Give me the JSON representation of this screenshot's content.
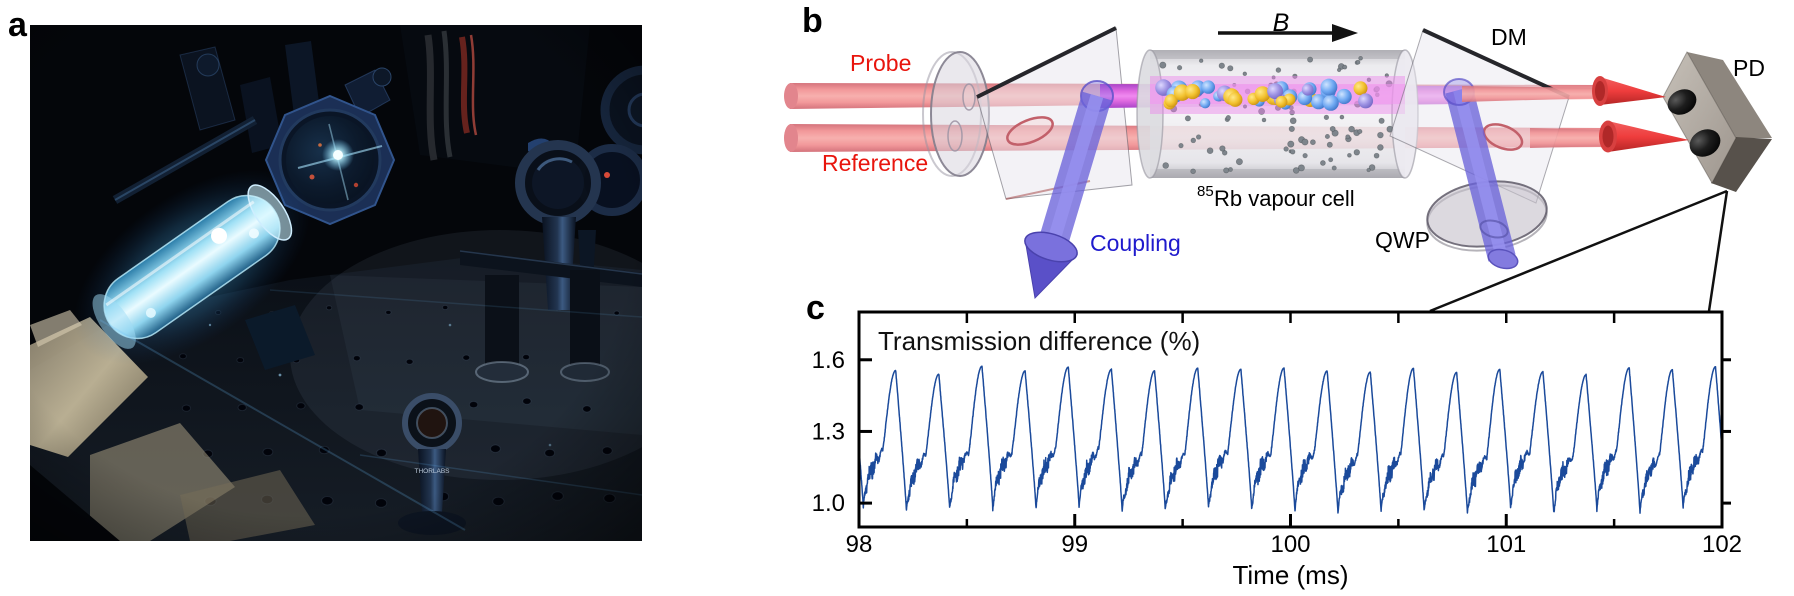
{
  "panels": {
    "a": "a",
    "b": "b",
    "c": "c"
  },
  "diagram": {
    "labels": {
      "probe": "Probe",
      "reference": "Reference",
      "coupling": "Coupling",
      "b_field": "B",
      "cell_sup": "85",
      "cell": "Rb vapour cell",
      "qwp": "QWP",
      "dm": "DM",
      "pd": "PD"
    },
    "colors": {
      "probe_label": "#e8150d",
      "coupling_label": "#1f1acd",
      "beam_red_core": "#f5b0ae",
      "beam_red_edge": "#d4737c",
      "beam_magenta_core": "#f08af0",
      "beam_magenta_edge": "#a844c8",
      "beam_blue": "#6a63da",
      "cone_red": "#e04343"
    },
    "atoms": {
      "grey_dots": 95,
      "beam_spheres": 38,
      "sphere_colors": [
        "#f4c832",
        "#6fa8f2",
        "#9b90e2"
      ],
      "sphere_weights": [
        0.45,
        0.35,
        0.2
      ],
      "seed": 7
    }
  },
  "photo": {
    "equipment_label": "THORLABS"
  },
  "chart_data": {
    "type": "line",
    "title": "Transmission difference (%)",
    "xlabel": "Time (ms)",
    "ylabel": "",
    "xlim": [
      98,
      102
    ],
    "ylim": [
      0.9,
      1.8
    ],
    "x_ticks": [
      98,
      99,
      100,
      101,
      102
    ],
    "x_minor_step": 0.5,
    "y_ticks": [
      1.0,
      1.3,
      1.6
    ],
    "grid": false,
    "legend": null,
    "line_color": "#1b4a9b",
    "frame_color": "#000000",
    "waveform": {
      "description": "Periodic ~5 kHz sawtooth-like relaxation oscillation of probe transmission: noisy slow plateau, steep rise to peak ~1.56%, steep fall to ~0.97%",
      "period_ms": 0.2,
      "first_peak_ms": 98.17,
      "peak_value": 1.555,
      "peak_jitter": 0.018,
      "min_value": 0.972,
      "min_jitter": 0.015,
      "plateau_end_value": 1.21,
      "fall_fraction": 0.25,
      "plateau_fraction": 0.45,
      "noise_amplitude": 0.03,
      "samples_per_ms": 1100,
      "seed": 12345
    }
  }
}
